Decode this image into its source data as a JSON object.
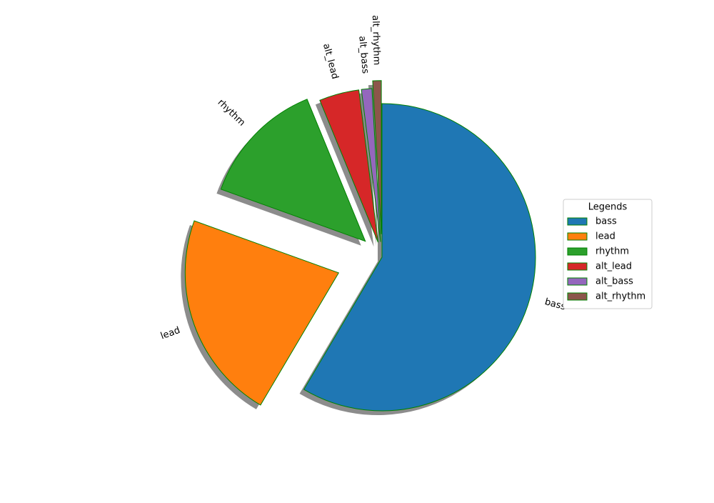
{
  "chart_data": {
    "type": "pie",
    "categories": [
      "bass",
      "lead",
      "rhythm",
      "alt_lead",
      "alt_bass",
      "alt_rhythm"
    ],
    "values": [
      58.5,
      22,
      13.3,
      4.2,
      1.1,
      0.9
    ],
    "colors": [
      "#1f77b4",
      "#ff7f0e",
      "#2ca02c",
      "#d62728",
      "#9467bd",
      "#8c564b"
    ],
    "explode": [
      0,
      0.3,
      0.15,
      0.1,
      0.1,
      0.15
    ],
    "edgecolor": "green",
    "shadow": true,
    "startangle": 90,
    "counterclock": false,
    "rotatelabels": true,
    "legend_title": "Legends",
    "legend": "right"
  }
}
